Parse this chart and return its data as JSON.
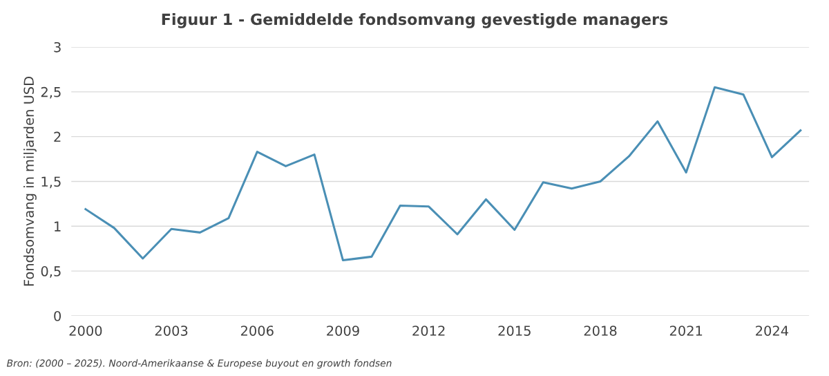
{
  "chart_data": {
    "type": "line",
    "title": "Figuur 1 - Gemiddelde fondsomvang gevestigde managers",
    "ylabel": "Fondsomvang in miljarden USD",
    "annotations": [
      "Bron: (2000 – 2025). Noord-Amerikaanse & Europese buyout en growth fondsen"
    ],
    "x": [
      2000,
      2001,
      2002,
      2003,
      2004,
      2005,
      2006,
      2007,
      2008,
      2009,
      2010,
      2011,
      2012,
      2013,
      2014,
      2015,
      2016,
      2017,
      2018,
      2019,
      2020,
      2021,
      2022,
      2023,
      2024,
      2025
    ],
    "series": [
      {
        "color": "#4a8fb5",
        "values": [
          1.19,
          0.98,
          0.64,
          0.97,
          0.93,
          1.09,
          1.83,
          1.67,
          1.8,
          0.62,
          0.66,
          1.23,
          1.22,
          0.91,
          1.3,
          0.96,
          1.49,
          1.42,
          1.5,
          1.78,
          2.17,
          1.6,
          2.55,
          2.47,
          1.77,
          2.07
        ]
      }
    ],
    "xlim": [
      1999.5,
      2025.3
    ],
    "xticks": [
      2000,
      2003,
      2006,
      2009,
      2012,
      2015,
      2018,
      2021,
      2024
    ],
    "ylim": [
      0,
      3
    ],
    "yticks": [
      0,
      {
        "value": 0.5,
        "label": "0,5"
      },
      1,
      {
        "value": 1.5,
        "label": "1,5"
      },
      2,
      {
        "value": 2.5,
        "label": "2,5"
      },
      3
    ],
    "grid": "y",
    "legend": false,
    "marker": "none",
    "line_style": "solid"
  }
}
